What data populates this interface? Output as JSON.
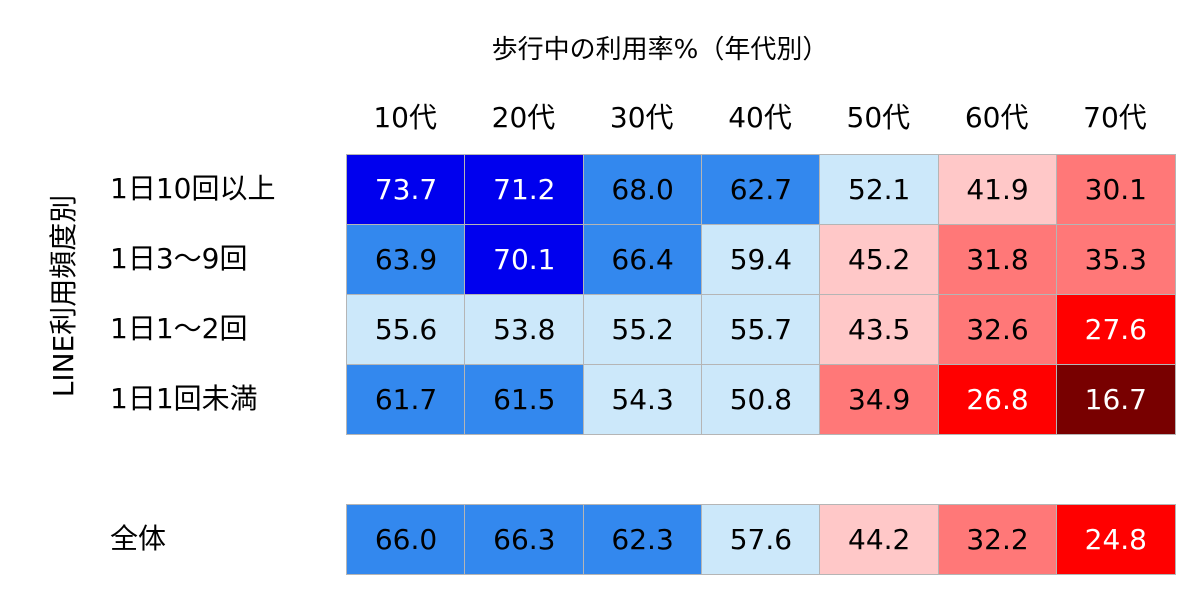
{
  "chart_data": {
    "type": "heatmap",
    "title": "歩行中の利用率%（年代別）",
    "ylabel": "LINE利用頻度別",
    "columns": [
      "10代",
      "20代",
      "30代",
      "40代",
      "50代",
      "60代",
      "70代"
    ],
    "rows": [
      "1日10回以上",
      "1日3〜9回",
      "1日1〜2回",
      "1日1回未満"
    ],
    "values": [
      [
        "73.7",
        "71.2",
        "68.0",
        "62.7",
        "52.1",
        "41.9",
        "30.1"
      ],
      [
        "63.9",
        "70.1",
        "66.4",
        "59.4",
        "45.2",
        "31.8",
        "35.3"
      ],
      [
        "55.6",
        "53.8",
        "55.2",
        "55.7",
        "43.5",
        "32.6",
        "27.6"
      ],
      [
        "61.7",
        "61.5",
        "54.3",
        "50.8",
        "34.9",
        "26.8",
        "16.7"
      ]
    ],
    "total": {
      "label": "全体",
      "values": [
        "66.0",
        "66.3",
        "62.3",
        "57.6",
        "44.2",
        "32.2",
        "24.8"
      ]
    }
  },
  "colors": {
    "very_high": "#0000ee",
    "high": "#3388ee",
    "mid_high": "#cce8fa",
    "mid_low": "#ffc8c8",
    "low": "#ff7878",
    "very_low": "#ff0000",
    "lowest": "#780000",
    "cell_border": "#b5b5b5"
  }
}
